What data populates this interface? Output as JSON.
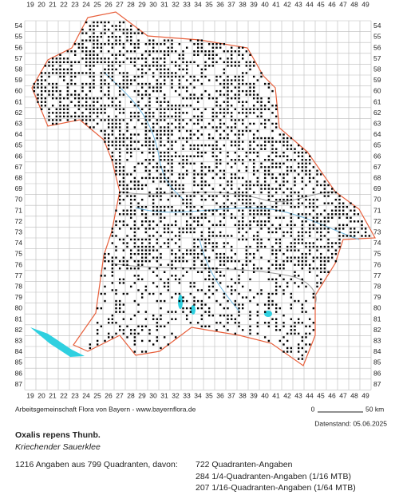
{
  "map": {
    "columns": [
      19,
      20,
      21,
      22,
      23,
      24,
      25,
      26,
      27,
      28,
      29,
      30,
      31,
      32,
      33,
      34,
      35,
      36,
      37,
      38,
      39,
      40,
      41,
      42,
      43,
      44,
      45,
      46,
      47,
      48,
      49
    ],
    "rows": [
      54,
      55,
      56,
      57,
      58,
      59,
      60,
      61,
      62,
      63,
      64,
      65,
      66,
      67,
      68,
      69,
      70,
      71,
      72,
      73,
      74,
      75,
      76,
      77,
      78,
      79,
      80,
      81,
      82,
      83,
      84,
      85,
      86,
      87
    ],
    "scale": {
      "start": "0",
      "end": "50 km"
    }
  },
  "footer": {
    "credit": "Arbeitsgemeinschaft Flora von Bayern - www.bayernflora.de",
    "date": "Datenstand: 05.06.2025"
  },
  "species": {
    "name": "Oxalis repens Thunb.",
    "common": "Kriechender Sauerklee"
  },
  "stats": {
    "summary": "1216 Angaben aus 799 Quadranten, davon:",
    "lines": [
      "722 Quadranten-Angaben",
      "284 1/4-Quadranten-Angaben (1/16 MTB)",
      "207 1/16-Quadranten-Angaben (1/64 MTB)"
    ]
  }
}
